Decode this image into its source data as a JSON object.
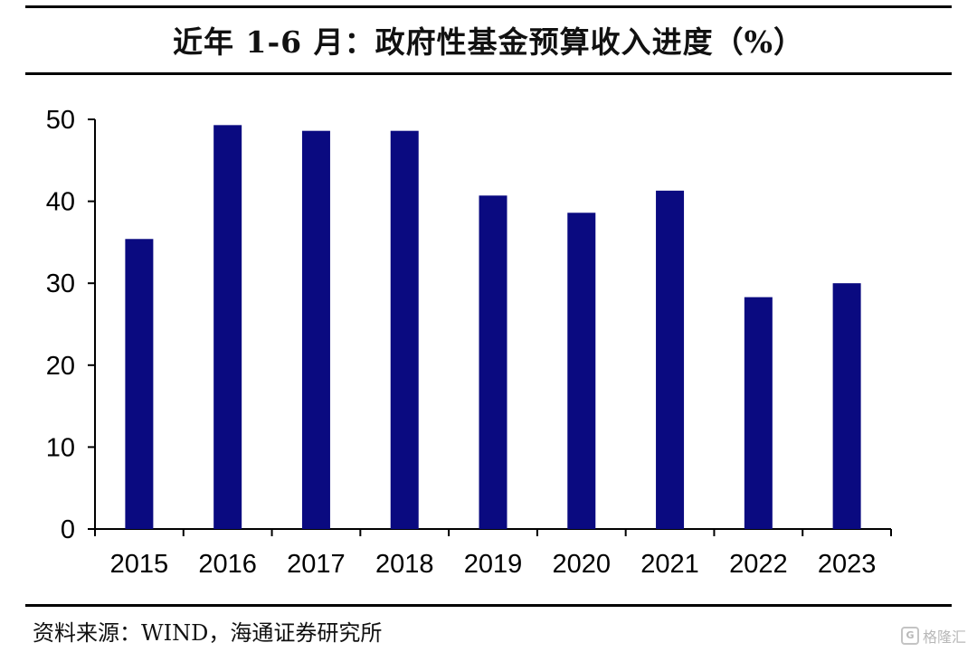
{
  "header": {
    "title": "近年 1-6 月：政府性基金预算收入进度（%）"
  },
  "footer": {
    "source": "资料来源：WIND，海通证券研究所",
    "watermark": "格隆汇"
  },
  "colors": {
    "bar": "#0a0a80",
    "axis": "#000000",
    "rule": "#000000"
  },
  "chart_data": {
    "type": "bar",
    "title": "近年 1-6 月：政府性基金预算收入进度（%）",
    "xlabel": "",
    "ylabel": "",
    "categories": [
      "2015",
      "2016",
      "2017",
      "2018",
      "2019",
      "2020",
      "2021",
      "2022",
      "2023"
    ],
    "values": [
      35.4,
      49.3,
      48.6,
      48.6,
      40.7,
      38.6,
      41.3,
      28.3,
      30.0
    ],
    "ylim": [
      0,
      50
    ],
    "yticks": [
      "0",
      "10",
      "20",
      "30",
      "40",
      "50"
    ],
    "grid": false,
    "legend": "none"
  }
}
